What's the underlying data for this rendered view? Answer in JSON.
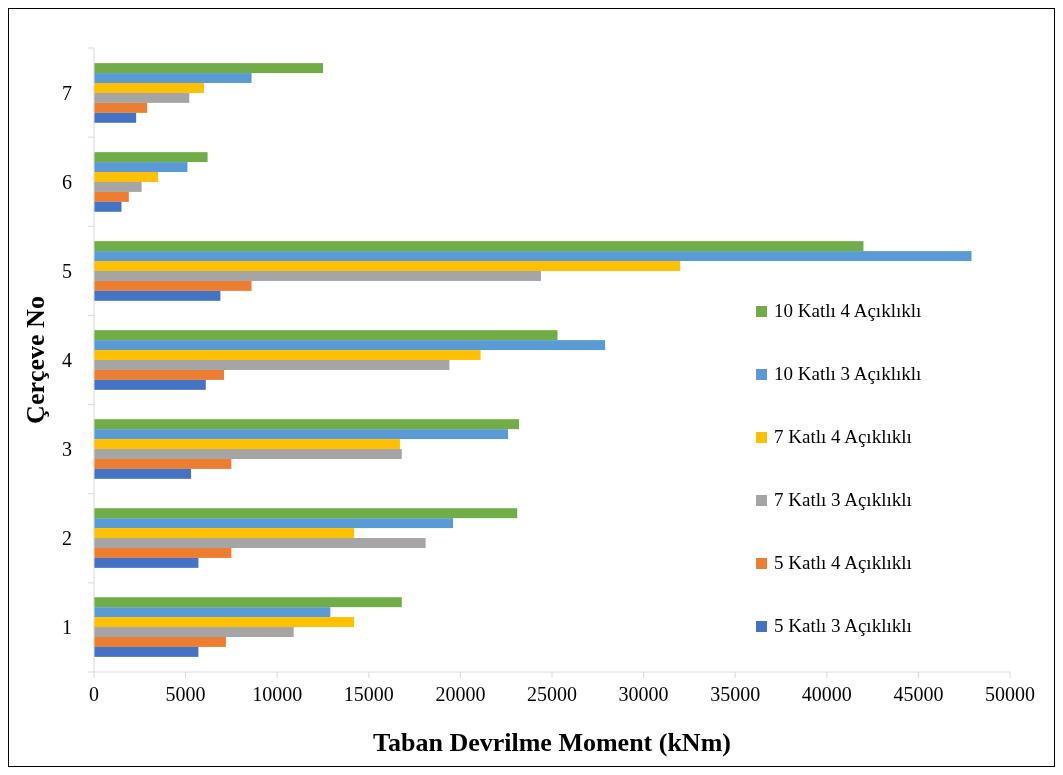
{
  "chart_data": {
    "type": "bar",
    "orientation": "horizontal",
    "xlabel": "Taban Devrilme Moment (kNm)",
    "ylabel": "Çerçeve No",
    "categories": [
      "7",
      "6",
      "5",
      "4",
      "3",
      "2",
      "1"
    ],
    "series": [
      {
        "name": "10 Katlı 4 Açıklıklı",
        "color": "#70ad47",
        "values": [
          12500,
          6200,
          42000,
          25300,
          23200,
          23100,
          16800
        ]
      },
      {
        "name": "10 Katlı 3 Açıklıklı",
        "color": "#5b9bd5",
        "values": [
          8600,
          5100,
          47900,
          27900,
          22600,
          19600,
          12900
        ]
      },
      {
        "name": "7 Katlı 4 Açıklıklı",
        "color": "#ffc000",
        "values": [
          6000,
          3500,
          32000,
          21100,
          16700,
          14200,
          14200
        ]
      },
      {
        "name": "7 Katlı 3 Açıklıklı",
        "color": "#a5a5a5",
        "values": [
          5200,
          2600,
          24400,
          19400,
          16800,
          18100,
          10900
        ]
      },
      {
        "name": "5 Katlı 4 Açıklıklı",
        "color": "#ed7d31",
        "values": [
          2900,
          1900,
          8600,
          7100,
          7500,
          7500,
          7200
        ]
      },
      {
        "name": "5 Katlı 3 Açıklıklı",
        "color": "#4472c4",
        "values": [
          2300,
          1500,
          6900,
          6100,
          5300,
          5700,
          5700
        ]
      }
    ],
    "xlim": [
      0,
      50000
    ],
    "xticks": [
      0,
      5000,
      10000,
      15000,
      20000,
      25000,
      30000,
      35000,
      40000,
      45000,
      50000
    ],
    "grid": false,
    "legend": "right"
  }
}
